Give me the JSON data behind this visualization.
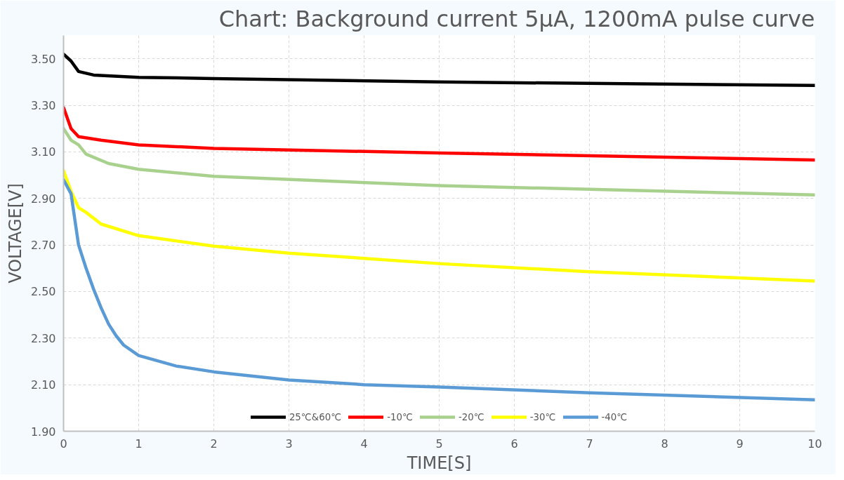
{
  "chart_data": {
    "type": "line",
    "title": "Chart: Background current 5μA, 1200mA pulse curve",
    "xlabel": "TIME[S]",
    "ylabel": "VOLTAGE[V]",
    "xlim": [
      0,
      10
    ],
    "xticks": [
      0,
      1,
      2,
      3,
      4,
      5,
      6,
      7,
      8,
      9,
      10
    ],
    "ylim": [
      1.9,
      3.6
    ],
    "yticks": [
      {
        "value": 1.9,
        "label": "1.90"
      },
      {
        "value": 2.1,
        "label": "2.10"
      },
      {
        "value": 2.3,
        "label": "2.30"
      },
      {
        "value": 2.5,
        "label": "2.50"
      },
      {
        "value": 2.7,
        "label": "2.70"
      },
      {
        "value": 2.9,
        "label": "2.90"
      },
      {
        "value": 3.1,
        "label": "3.10"
      },
      {
        "value": 3.3,
        "label": "3.30"
      },
      {
        "value": 3.5,
        "label": "3.50"
      }
    ],
    "grid": true,
    "legend": "bottom",
    "line_style": "solid",
    "marker": "none",
    "series": [
      {
        "name": "25℃&60℃",
        "color": "#000000",
        "x": [
          0,
          0.1,
          0.2,
          0.4,
          1,
          2,
          5,
          10
        ],
        "values": [
          3.52,
          3.49,
          3.445,
          3.43,
          3.42,
          3.415,
          3.4,
          3.385
        ]
      },
      {
        "name": "-10℃",
        "color": "#ff0000",
        "x": [
          0,
          0.1,
          0.2,
          0.5,
          1,
          2,
          5,
          10
        ],
        "values": [
          3.29,
          3.2,
          3.165,
          3.15,
          3.13,
          3.115,
          3.095,
          3.065
        ]
      },
      {
        "name": "-20℃",
        "color": "#a9d18e",
        "x": [
          0,
          0.1,
          0.2,
          0.3,
          0.6,
          1,
          2,
          5,
          10
        ],
        "values": [
          3.2,
          3.15,
          3.13,
          3.09,
          3.05,
          3.025,
          2.995,
          2.955,
          2.915
        ]
      },
      {
        "name": "-30℃",
        "color": "#ffff00",
        "x": [
          0,
          0.1,
          0.2,
          0.3,
          0.5,
          1,
          2,
          3,
          5,
          7,
          10
        ],
        "values": [
          3.02,
          2.93,
          2.86,
          2.84,
          2.79,
          2.74,
          2.695,
          2.665,
          2.62,
          2.585,
          2.545
        ]
      },
      {
        "name": "-40℃",
        "color": "#5b9bd5",
        "x": [
          0,
          0.1,
          0.2,
          0.3,
          0.4,
          0.5,
          0.6,
          0.7,
          0.8,
          1,
          1.5,
          2,
          3,
          4,
          5,
          7,
          10
        ],
        "values": [
          2.98,
          2.92,
          2.7,
          2.6,
          2.51,
          2.43,
          2.36,
          2.31,
          2.27,
          2.225,
          2.18,
          2.155,
          2.12,
          2.1,
          2.09,
          2.065,
          2.035
        ]
      }
    ]
  }
}
